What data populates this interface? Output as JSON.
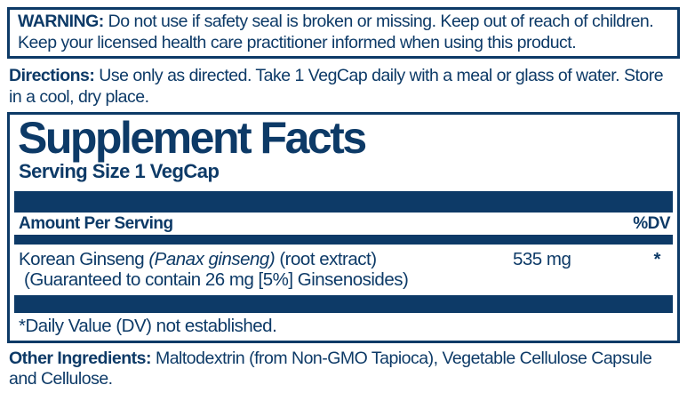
{
  "colors": {
    "navy": "#0d3a67",
    "background": "#ffffff"
  },
  "warning": {
    "label": "WARNING:",
    "text": "Do not use if safety seal is broken or missing. Keep out of reach of children. Keep your licensed health care practitioner informed when using this product."
  },
  "directions": {
    "label": "Directions:",
    "text": "Use only as directed. Take 1 VegCap daily with a meal or glass of water. Store in a cool, dry place."
  },
  "supplement_facts": {
    "title": "Supplement Facts",
    "serving_size": "Serving Size 1 VegCap",
    "columns": {
      "amount": "Amount Per Serving",
      "dv": "%DV"
    },
    "rows": [
      {
        "name_part1": "Korean Ginseng",
        "name_italic": "(Panax ginseng)",
        "name_part2": "(root extract)",
        "name_line2": "(Guaranteed to contain 26 mg [5%] Ginsenosides)",
        "amount": "535 mg",
        "dv": "*"
      }
    ],
    "footnote": "*Daily Value (DV) not established."
  },
  "other_ingredients": {
    "label": "Other Ingredients:",
    "text": "Maltodextrin (from Non-GMO Tapioca), Vegetable Cellulose Capsule and Cellulose."
  }
}
